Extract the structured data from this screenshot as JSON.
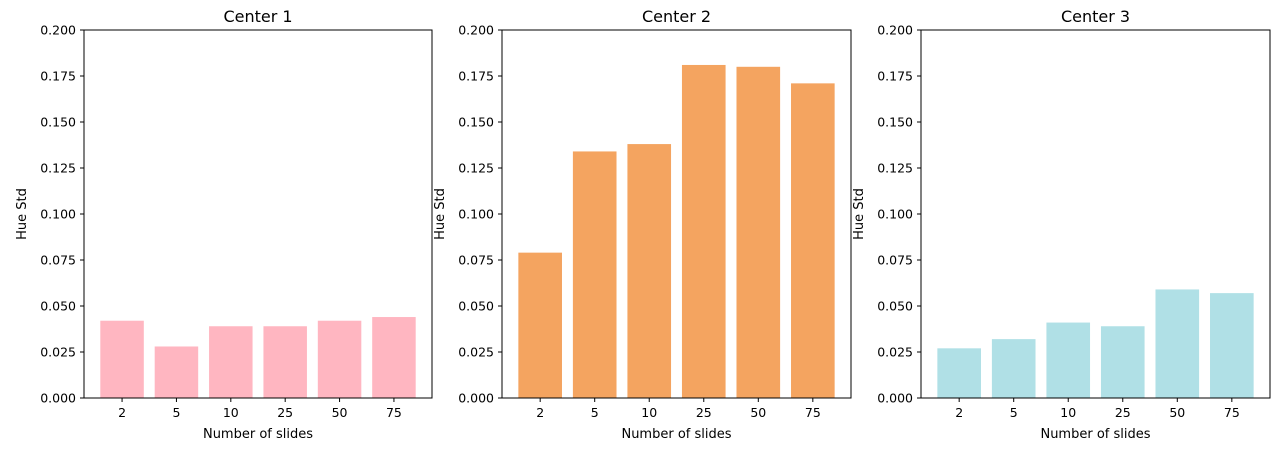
{
  "chart_data": [
    {
      "type": "bar",
      "title": "Center 1",
      "xlabel": "Number of slides",
      "ylabel": "Hue Std",
      "categories": [
        "2",
        "5",
        "10",
        "25",
        "50",
        "75"
      ],
      "values": [
        0.042,
        0.028,
        0.039,
        0.039,
        0.042,
        0.044
      ],
      "ylim": [
        0,
        0.2
      ],
      "yticks": [
        "0.000",
        "0.025",
        "0.050",
        "0.075",
        "0.100",
        "0.125",
        "0.150",
        "0.175",
        "0.200"
      ],
      "color": "#ffb6c1",
      "grid": false
    },
    {
      "type": "bar",
      "title": "Center 2",
      "xlabel": "Number of slides",
      "ylabel": "Hue Std",
      "categories": [
        "2",
        "5",
        "10",
        "25",
        "50",
        "75"
      ],
      "values": [
        0.079,
        0.134,
        0.138,
        0.181,
        0.18,
        0.171
      ],
      "ylim": [
        0,
        0.2
      ],
      "yticks": [
        "0.000",
        "0.025",
        "0.050",
        "0.075",
        "0.100",
        "0.125",
        "0.150",
        "0.175",
        "0.200"
      ],
      "color": "#f4a460",
      "grid": false
    },
    {
      "type": "bar",
      "title": "Center 3",
      "xlabel": "Number of slides",
      "ylabel": "Hue Std",
      "categories": [
        "2",
        "5",
        "10",
        "25",
        "50",
        "75"
      ],
      "values": [
        0.027,
        0.032,
        0.041,
        0.039,
        0.059,
        0.057
      ],
      "ylim": [
        0,
        0.2
      ],
      "yticks": [
        "0.000",
        "0.025",
        "0.050",
        "0.075",
        "0.100",
        "0.125",
        "0.150",
        "0.175",
        "0.200"
      ],
      "color": "#b0e0e6",
      "grid": false
    }
  ]
}
